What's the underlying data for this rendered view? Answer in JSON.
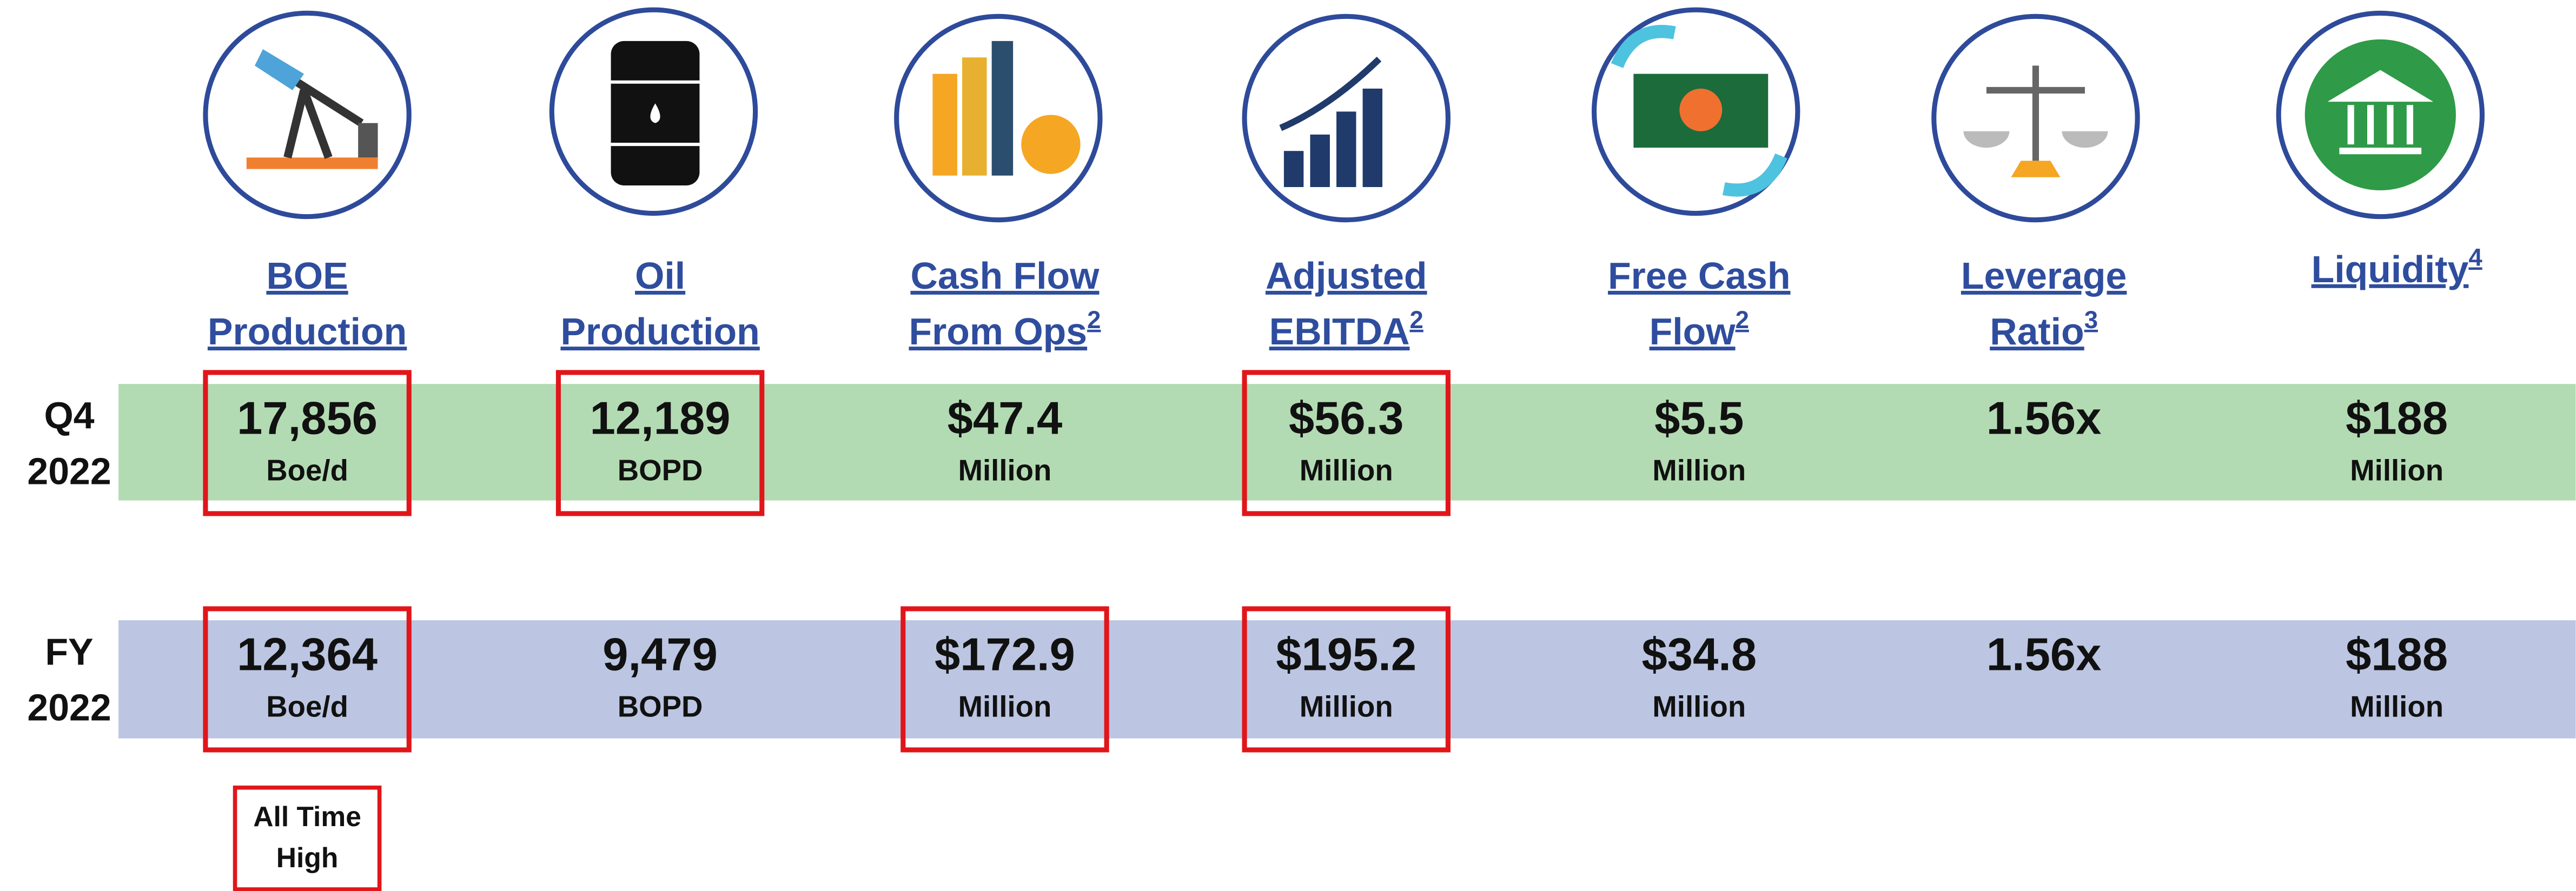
{
  "columns": [
    {
      "heading": [
        "BOE",
        "Production"
      ]
    },
    {
      "heading": [
        "Oil",
        "Production"
      ]
    },
    {
      "heading": [
        "Cash Flow",
        "From Ops"
      ],
      "sup": "2"
    },
    {
      "heading": [
        "Adjusted",
        "EBITDA"
      ],
      "sup": "2"
    },
    {
      "heading": [
        "Free Cash",
        "Flow"
      ],
      "sup": "2"
    },
    {
      "heading": [
        "Leverage",
        "Ratio"
      ],
      "sup": "3"
    },
    {
      "heading": [
        "Liquidity"
      ],
      "sup": "4"
    }
  ],
  "rows": [
    {
      "label": [
        "Q4",
        "2022"
      ],
      "cells": [
        {
          "value": "17,856",
          "unit": "Boe/d",
          "highlight": true
        },
        {
          "value": "12,189",
          "unit": "BOPD",
          "highlight": true
        },
        {
          "value": "$47.4",
          "unit": "Million"
        },
        {
          "value": "$56.3",
          "unit": "Million",
          "highlight": true
        },
        {
          "value": "$5.5",
          "unit": "Million"
        },
        {
          "value": "1.56x"
        },
        {
          "value": "$188",
          "unit": "Million"
        }
      ]
    },
    {
      "label": [
        "FY",
        "2022"
      ],
      "cells": [
        {
          "value": "12,364",
          "unit": "Boe/d",
          "highlight": true
        },
        {
          "value": "9,479",
          "unit": "BOPD"
        },
        {
          "value": "$172.9",
          "unit": "Million",
          "highlight": true
        },
        {
          "value": "$195.2",
          "unit": "Million",
          "highlight": true
        },
        {
          "value": "$34.8",
          "unit": "Million"
        },
        {
          "value": "1.56x"
        },
        {
          "value": "$188",
          "unit": "Million"
        }
      ]
    }
  ],
  "annotation": [
    "All Time",
    "High"
  ]
}
